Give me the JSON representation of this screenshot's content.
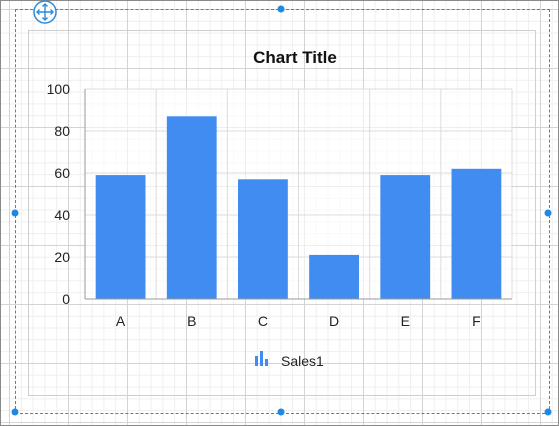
{
  "chart_data": {
    "type": "bar",
    "title": "Chart Title",
    "categories": [
      "A",
      "B",
      "C",
      "D",
      "E",
      "F"
    ],
    "series": [
      {
        "name": "Sales1",
        "values": [
          59,
          87,
          57,
          21,
          59,
          62
        ]
      }
    ],
    "ylim": [
      0,
      100
    ],
    "yticks": [
      "0",
      "20",
      "40",
      "60",
      "80",
      "100"
    ],
    "grid": true,
    "legend": "bottom",
    "colors": {
      "bar": "#418cf0"
    }
  },
  "icons": {
    "move_handle": "move-arrows-icon",
    "legend_marker": "bar-chart-icon"
  }
}
